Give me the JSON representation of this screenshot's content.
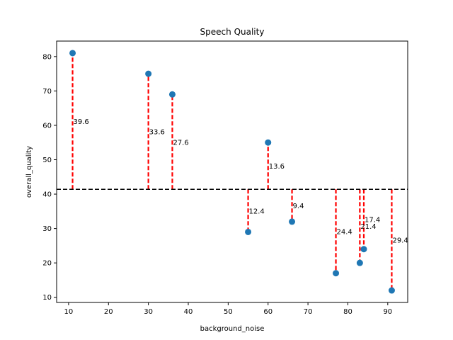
{
  "chart_data": {
    "type": "scatter",
    "title": "Speech Quality",
    "xlabel": "background_noise",
    "ylabel": "overall_quality",
    "xlim": [
      7,
      95
    ],
    "ylim": [
      8.5,
      84.5
    ],
    "xticks": [
      10,
      20,
      30,
      40,
      50,
      60,
      70,
      80,
      90
    ],
    "yticks": [
      10,
      20,
      30,
      40,
      50,
      60,
      70,
      80
    ],
    "grid": false,
    "reference_line": {
      "y": 41.4,
      "style": "dashed",
      "color": "#000000"
    },
    "points": [
      {
        "x": 11,
        "y": 81,
        "label": "39.6"
      },
      {
        "x": 30,
        "y": 75,
        "label": "33.6"
      },
      {
        "x": 36,
        "y": 69,
        "label": "27.6"
      },
      {
        "x": 55,
        "y": 29,
        "label": "12.4"
      },
      {
        "x": 60,
        "y": 55,
        "label": "13.6"
      },
      {
        "x": 66,
        "y": 32,
        "label": "9.4"
      },
      {
        "x": 77,
        "y": 17,
        "label": "24.4"
      },
      {
        "x": 83,
        "y": 20,
        "label": "21.4"
      },
      {
        "x": 84,
        "y": 24,
        "label": "17.4"
      },
      {
        "x": 91,
        "y": 12,
        "label": "29.4"
      }
    ],
    "colors": {
      "points": "#1f77b4",
      "residuals": "#ff0000",
      "reference": "#000000"
    }
  }
}
